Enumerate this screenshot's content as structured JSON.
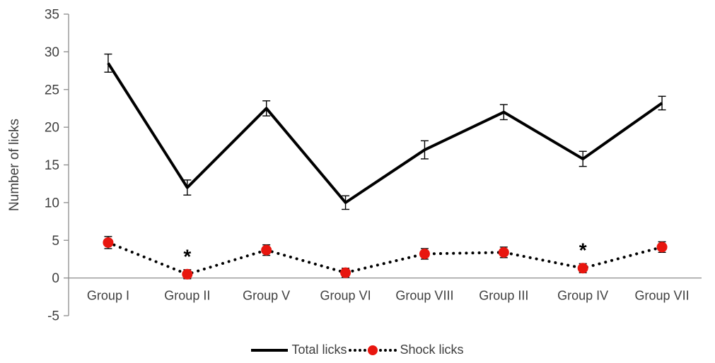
{
  "chart_data": {
    "type": "line",
    "title": "",
    "xlabel": "",
    "ylabel": "Number of licks",
    "ylim": [
      -5,
      35
    ],
    "ytick_step": 5,
    "grid": false,
    "legend_position": "bottom",
    "categories": [
      "Group I",
      "Group II",
      "Group V",
      "Group VI",
      "Group VIII",
      "Group III",
      "Group IV",
      "Group VII"
    ],
    "series": [
      {
        "name": "Total licks",
        "style": "solid",
        "color": "#000000",
        "values": [
          28.5,
          12.0,
          22.5,
          10.0,
          17.0,
          22.0,
          15.8,
          23.2
        ],
        "errors": [
          1.2,
          1.0,
          1.0,
          0.9,
          1.2,
          1.0,
          1.0,
          0.9
        ]
      },
      {
        "name": "Shock licks",
        "style": "dotted",
        "color": "#000000",
        "marker": "circle",
        "marker_color": "#e8160f",
        "values": [
          4.7,
          0.5,
          3.7,
          0.7,
          3.2,
          3.4,
          1.3,
          4.1
        ],
        "errors": [
          0.8,
          0.6,
          0.7,
          0.6,
          0.7,
          0.7,
          0.6,
          0.7
        ]
      }
    ],
    "annotations": [
      {
        "text": "*",
        "category": "Group II",
        "series": "Shock licks"
      },
      {
        "text": "*",
        "category": "Group IV",
        "series": "Shock licks"
      }
    ],
    "colors": {
      "axis": "#8c8c8c",
      "text": "#3f3f3f",
      "background": "#ffffff"
    }
  }
}
